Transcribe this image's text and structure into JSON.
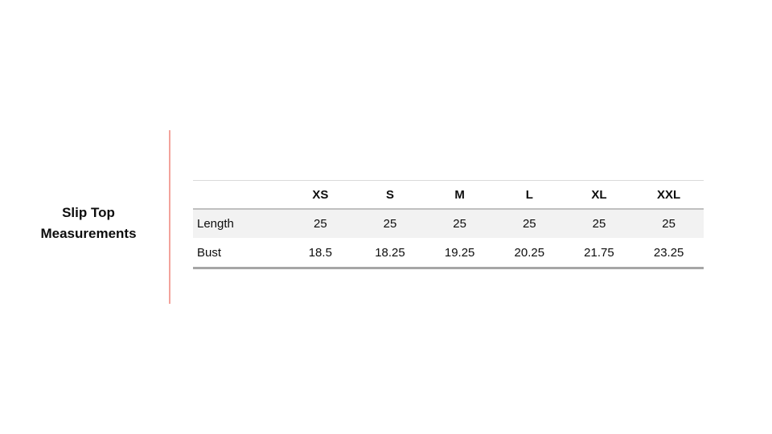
{
  "title": {
    "lines": [
      "Slip Top",
      "Measurements"
    ]
  },
  "table": {
    "corner_label": "",
    "columns": [
      "XS",
      "S",
      "M",
      "L",
      "XL",
      "XXL"
    ],
    "rows": [
      {
        "label": "Length",
        "values": [
          "25",
          "25",
          "25",
          "25",
          "25",
          "25"
        ]
      },
      {
        "label": "Bust",
        "values": [
          "18.5",
          "18.25",
          "19.25",
          "20.25",
          "21.75",
          "23.25"
        ]
      }
    ]
  },
  "colors": {
    "accent_divider": "#f3a39c",
    "shaded_row_background": "#f2f2f2",
    "table_top_border": "#d9d9d9",
    "header_underline": "#bfbfbf",
    "table_bottom_border": "#a6a6a6",
    "text": "#0d0d0d",
    "background": "#ffffff"
  }
}
